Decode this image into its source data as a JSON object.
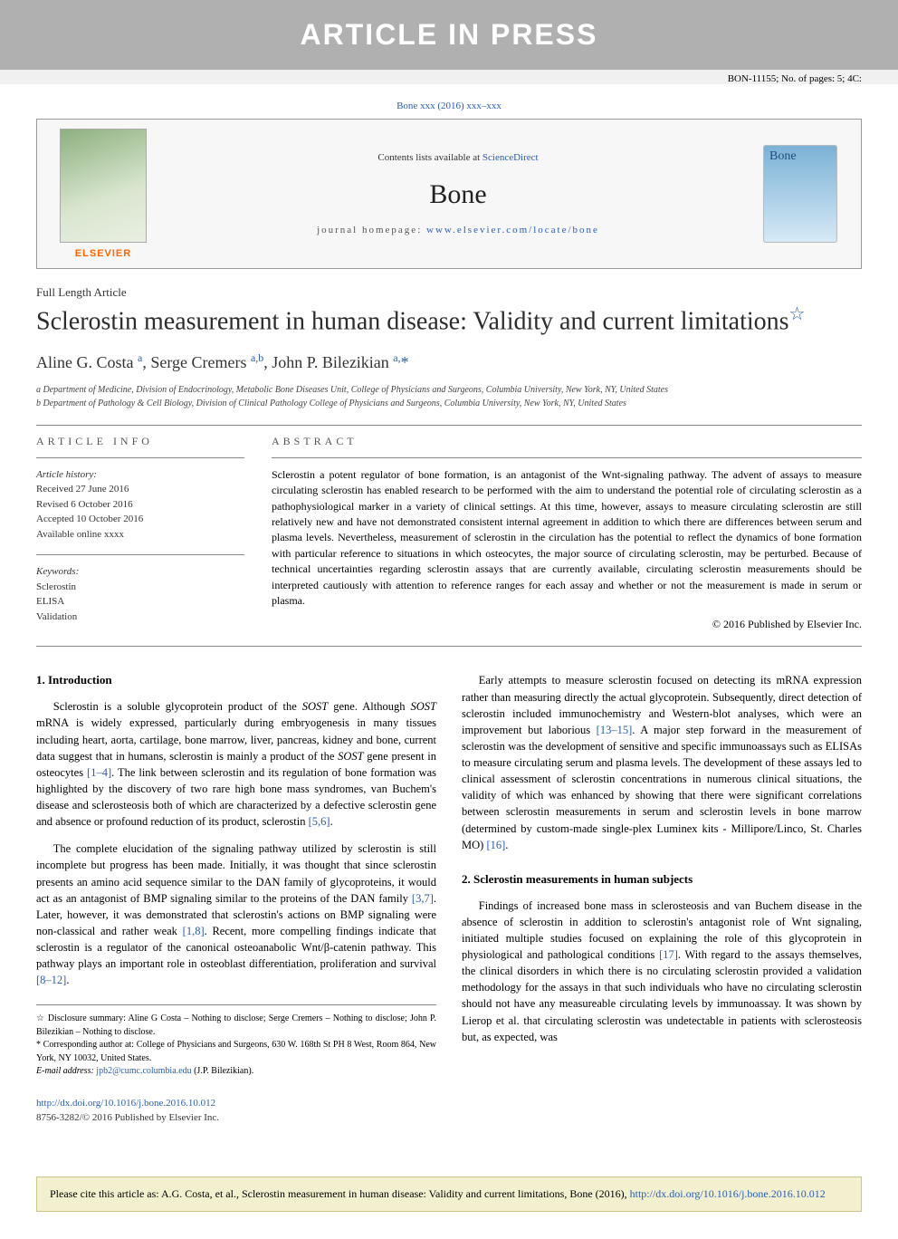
{
  "banner": "ARTICLE IN PRESS",
  "doc_id": "BON-11155; No. of pages: 5; 4C:",
  "journal_ref": "Bone xxx (2016) xxx–xxx",
  "header": {
    "contents_text": "Contents lists available at ",
    "contents_link": "ScienceDirect",
    "journal_name": "Bone",
    "homepage_label": "journal homepage: ",
    "homepage_url": "www.elsevier.com/locate/bone",
    "publisher": "ELSEVIER"
  },
  "article": {
    "type": "Full Length Article",
    "title": "Sclerostin measurement in human disease: Validity and current limitations",
    "authors_html": "Aline G. Costa <sup>a</sup>, Serge Cremers <sup>a,b</sup>, John P. Bilezikian <sup>a,</sup><span class='corr-star'>*</span>",
    "affiliations": [
      "a Department of Medicine, Division of Endocrinology, Metabolic Bone Diseases Unit, College of Physicians and Surgeons, Columbia University, New York, NY, United States",
      "b Department of Pathology & Cell Biology, Division of Clinical Pathology College of Physicians and Surgeons, Columbia University, New York, NY, United States"
    ]
  },
  "info": {
    "heading": "article info",
    "history_label": "Article history:",
    "received": "Received 27 June 2016",
    "revised": "Revised 6 October 2016",
    "accepted": "Accepted 10 October 2016",
    "online": "Available online xxxx",
    "keywords_label": "Keywords:",
    "keywords": [
      "Sclerostin",
      "ELISA",
      "Validation"
    ]
  },
  "abstract": {
    "heading": "abstract",
    "text": "Sclerostin a potent regulator of bone formation, is an antagonist of the Wnt-signaling pathway. The advent of assays to measure circulating sclerostin has enabled research to be performed with the aim to understand the potential role of circulating sclerostin as a pathophysiological marker in a variety of clinical settings. At this time, however, assays to measure circulating sclerostin are still relatively new and have not demonstrated consistent internal agreement in addition to which there are differences between serum and plasma levels. Nevertheless, measurement of sclerostin in the circulation has the potential to reflect the dynamics of bone formation with particular reference to situations in which osteocytes, the major source of circulating sclerostin, may be perturbed. Because of technical uncertainties regarding sclerostin assays that are currently available, circulating sclerostin measurements should be interpreted cautiously with attention to reference ranges for each assay and whether or not the measurement is made in serum or plasma.",
    "copyright": "© 2016 Published by Elsevier Inc."
  },
  "sections": {
    "s1_title": "1. Introduction",
    "s1_p1": "Sclerostin is a soluble glycoprotein product of the <span class='ital'>SOST</span> gene. Although <span class='ital'>SOST</span> mRNA is widely expressed, particularly during embryogenesis in many tissues including heart, aorta, cartilage, bone marrow, liver, pancreas, kidney and bone, current data suggest that in humans, sclerostin is mainly a product of the <span class='ital'>SOST</span> gene present in osteocytes <span class='ref-link'>[1–4]</span>. The link between sclerostin and its regulation of bone formation was highlighted by the discovery of two rare high bone mass syndromes, van Buchem's disease and sclerosteosis both of which are characterized by a defective sclerostin gene and absence or profound reduction of its product, sclerostin <span class='ref-link'>[5,6]</span>.",
    "s1_p2": "The complete elucidation of the signaling pathway utilized by sclerostin is still incomplete but progress has been made. Initially, it was thought that since sclerostin presents an amino acid sequence similar to the DAN family of glycoproteins, it would act as an antagonist of BMP signaling similar to the proteins of the DAN family <span class='ref-link'>[3,7]</span>. Later, however, it was demonstrated that sclerostin's actions on BMP signaling were non-classical and rather weak <span class='ref-link'>[1,8]</span>. Recent, more compelling findings indicate that sclerostin is a regulator of the canonical osteoanabolic Wnt/β-catenin pathway. This pathway plays an important role in osteoblast differentiation, proliferation and survival <span class='ref-link'>[8–12]</span>.",
    "s2_p1": "Early attempts to measure sclerostin focused on detecting its mRNA expression rather than measuring directly the actual glycoprotein. Subsequently, direct detection of sclerostin included immunochemistry and Western-blot analyses, which were an improvement but laborious <span class='ref-link'>[13–15]</span>. A major step forward in the measurement of sclerostin was the development of sensitive and specific immunoassays such as ELISAs to measure circulating serum and plasma levels. The development of these assays led to clinical assessment of sclerostin concentrations in numerous clinical situations, the validity of which was enhanced by showing that there were significant correlations between sclerostin measurements in serum and sclerostin levels in bone marrow (determined by custom-made single-plex Luminex kits - Millipore/Linco, St. Charles MO) <span class='ref-link'>[16]</span>.",
    "s2_title": "2. Sclerostin measurements in human subjects",
    "s2_p2": "Findings of increased bone mass in sclerosteosis and van Buchem disease in the absence of sclerostin in addition to sclerostin's antagonist role of Wnt signaling, initiated multiple studies focused on explaining the role of this glycoprotein in physiological and pathological conditions <span class='ref-link'>[17]</span>. With regard to the assays themselves, the clinical disorders in which there is no circulating sclerostin provided a validation methodology for the assays in that such individuals who have no circulating sclerostin should not have any measureable circulating levels by immunoassay. It was shown by Lierop et al. that circulating sclerostin was undetectable in patients with sclerosteosis but, as expected, was"
  },
  "footnotes": {
    "disclosure": "☆ Disclosure summary: Aline G Costa – Nothing to disclose; Serge Cremers – Nothing to disclose; John P. Bilezikian – Nothing to disclose.",
    "corresponding": "* Corresponding author at: College of Physicians and Surgeons, 630 W. 168th St PH 8 West, Room 864, New York, NY 10032, United States.",
    "email_label": "E-mail address: ",
    "email": "jpb2@cumc.columbia.edu",
    "email_who": " (J.P. Bilezikian)."
  },
  "doi": {
    "url": "http://dx.doi.org/10.1016/j.bone.2016.10.012",
    "issn": "8756-3282/© 2016 Published by Elsevier Inc."
  },
  "cite_box": "Please cite this article as: A.G. Costa, et al., Sclerostin measurement in human disease: Validity and current limitations, Bone (2016), ",
  "cite_link": "http://dx.doi.org/10.1016/j.bone.2016.10.012",
  "colors": {
    "banner_bg": "#b0b0b0",
    "link": "#2a5db0",
    "cite_bg": "#f3f0cf"
  }
}
